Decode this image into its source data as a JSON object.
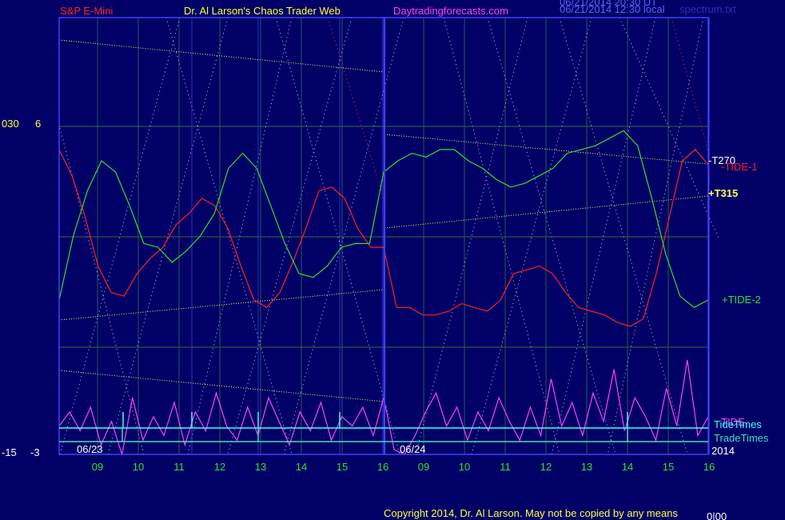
{
  "header": {
    "symbol": "S&P E-Mini",
    "site_title": "Dr. Al Larson's Chaos Trader Web",
    "site_url": "Daytradingforecasts.com",
    "stamp_1": "06/21/2014 20:30 UT",
    "stamp_2": "06/21/2014 12:30 local",
    "file": "spectrum.txt"
  },
  "footer": {
    "copyright": "Copyright 2014, Dr. Al Larson. May not be copied by any means",
    "corner": "0|00"
  },
  "left_scale": {
    "a_top": "030",
    "b_top": "6",
    "a_bottom": "-15",
    "b_bottom": "-3"
  },
  "chart_data": {
    "type": "line",
    "x_hour_ticks": [
      "09",
      "10",
      "11",
      "12",
      "13",
      "14",
      "15",
      "16",
      "09",
      "10",
      "11",
      "12",
      "13",
      "14",
      "15",
      "16"
    ],
    "date_labels": [
      "06/23",
      "06/24"
    ],
    "year_label": "2014",
    "series": [
      {
        "name": "-TIDE-1",
        "color": "#ff2020",
        "y": [
          0.73,
          0.66,
          0.55,
          0.42,
          0.35,
          0.34,
          0.4,
          0.44,
          0.47,
          0.53,
          0.56,
          0.6,
          0.58,
          0.52,
          0.42,
          0.33,
          0.31,
          0.35,
          0.43,
          0.52,
          0.62,
          0.63,
          0.6,
          0.52,
          0.47,
          0.47,
          0.31,
          0.31,
          0.29,
          0.29,
          0.3,
          0.32,
          0.31,
          0.3,
          0.33,
          0.4,
          0.41,
          0.42,
          0.4,
          0.35,
          0.31,
          0.3,
          0.29,
          0.27,
          0.26,
          0.28,
          0.4,
          0.55,
          0.7,
          0.73,
          0.69
        ]
      },
      {
        "name": "+TIDE-2",
        "color": "#30e030",
        "y": [
          0.33,
          0.5,
          0.62,
          0.7,
          0.67,
          0.58,
          0.48,
          0.47,
          0.43,
          0.46,
          0.5,
          0.56,
          0.68,
          0.72,
          0.68,
          0.58,
          0.48,
          0.4,
          0.39,
          0.42,
          0.47,
          0.48,
          0.48,
          0.67,
          0.7,
          0.72,
          0.71,
          0.73,
          0.73,
          0.7,
          0.68,
          0.65,
          0.63,
          0.64,
          0.66,
          0.68,
          0.72,
          0.73,
          0.74,
          0.76,
          0.78,
          0.74,
          0.6,
          0.45,
          0.34,
          0.31,
          0.33
        ]
      },
      {
        "name": "TIDE",
        "color": "#ff40ff",
        "y": [
          0.06,
          0.09,
          0.05,
          0.1,
          0.02,
          0.07,
          0.0,
          0.12,
          0.03,
          0.08,
          0.04,
          0.11,
          0.02,
          0.09,
          0.05,
          0.13,
          0.06,
          0.03,
          0.1,
          0.04,
          0.12,
          0.07,
          0.02,
          0.09,
          0.05,
          0.11,
          0.03,
          0.08,
          0.06,
          0.1,
          0.04,
          0.12,
          0.01,
          0.0,
          0.04,
          0.09,
          0.13,
          0.06,
          0.1,
          0.03,
          0.09,
          0.05,
          0.12,
          0.07,
          0.03,
          0.1,
          0.04,
          0.16,
          0.06,
          0.11,
          0.04,
          0.13,
          0.07,
          0.18,
          0.05,
          0.12,
          0.08,
          0.03,
          0.14,
          0.06,
          0.2,
          0.04,
          0.08
        ]
      }
    ],
    "line_labels": {
      "t270": "-T270",
      "t315": "+T315",
      "tide1": "-TIDE-1",
      "tide2": "+TIDE-2",
      "tide": "TIDE"
    },
    "bottom_labels": {
      "tide_times": "TideTimes",
      "trade_times": "TradeTimes"
    },
    "colors": {
      "background": "#000066",
      "grid": "#3a6a3a",
      "day_divider": "#4040ff",
      "channel": "#ffff60",
      "cyan": "#40ffff"
    }
  }
}
